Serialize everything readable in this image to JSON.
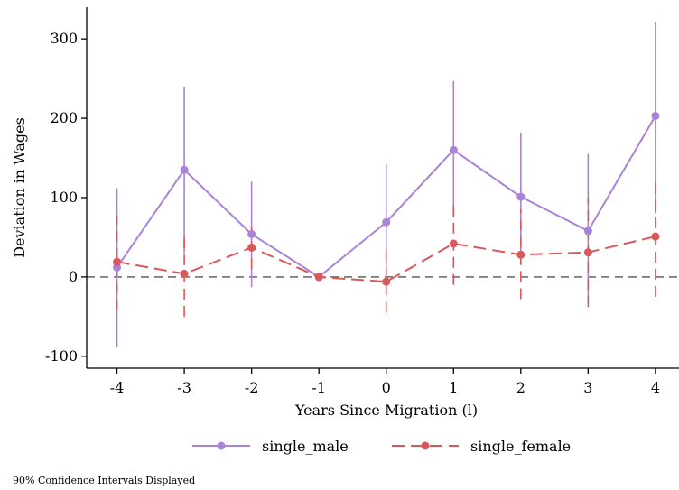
{
  "chart_data": {
    "type": "line",
    "x": [
      -4,
      -3,
      -2,
      -1,
      0,
      1,
      2,
      3,
      4
    ],
    "xlabel": "Years Since Migration (l)",
    "ylabel": "Deviation in Wages",
    "xlim": [
      -4.45,
      4.35
    ],
    "ylim": [
      -115,
      340
    ],
    "xticks": [
      -4,
      -3,
      -2,
      -1,
      0,
      1,
      2,
      3,
      4
    ],
    "xtick_labels": [
      "-4",
      "-3",
      "-2",
      "-1",
      "0",
      "1",
      "2",
      "3",
      "4"
    ],
    "yticks": [
      -100,
      0,
      100,
      200,
      300
    ],
    "ytick_labels": [
      "-100",
      "0",
      "100",
      "200",
      "300"
    ],
    "reference_line": 0,
    "grid": false,
    "legend_position": "bottom",
    "series": [
      {
        "name": "single_male",
        "color": "#a983d6",
        "dash": "solid",
        "values": [
          12,
          135,
          54,
          0,
          69,
          160,
          101,
          58,
          203
        ],
        "ci_low": [
          -88,
          30,
          -13,
          0,
          -5,
          75,
          15,
          -25,
          80
        ],
        "ci_high": [
          112,
          240,
          120,
          0,
          142,
          247,
          182,
          155,
          322
        ]
      },
      {
        "name": "single_female",
        "color": "#d9585b",
        "dash": "dashed",
        "values": [
          19,
          4,
          37,
          0,
          -6,
          42,
          28,
          31,
          51
        ],
        "ci_low": [
          -42,
          -50,
          10,
          0,
          -45,
          -10,
          -28,
          -38,
          -25
        ],
        "ci_high": [
          78,
          58,
          64,
          0,
          35,
          95,
          85,
          100,
          125
        ]
      }
    ],
    "note": "90% Confidence Intervals Displayed"
  }
}
